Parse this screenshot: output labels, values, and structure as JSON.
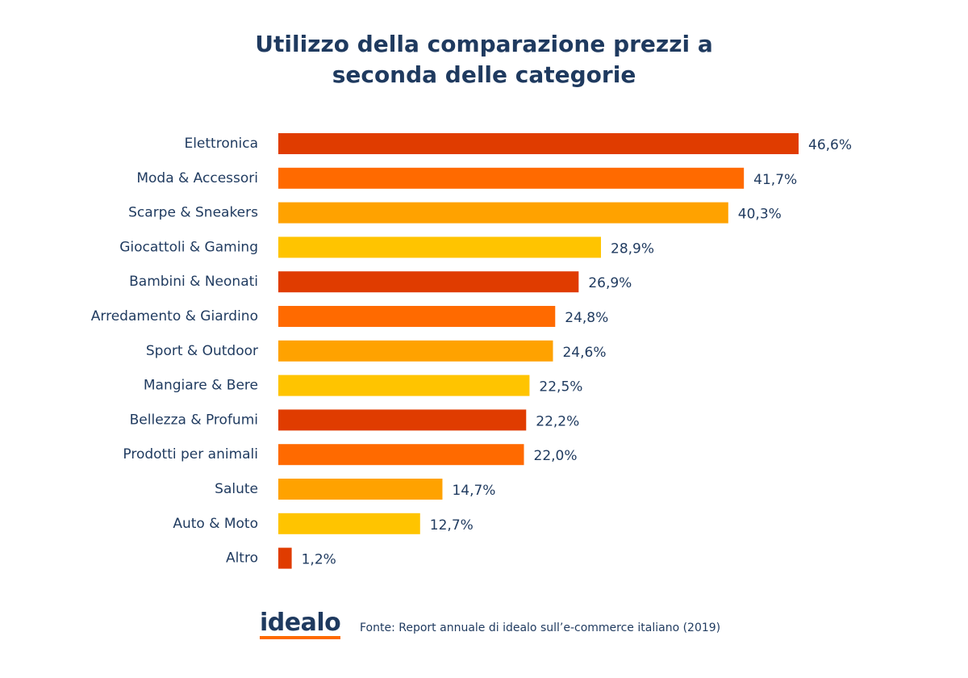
{
  "chart_data": {
    "type": "barh",
    "title": "Utilizzo della comparazione prezzi a seconda delle categorie",
    "categories": [
      "Elettronica",
      "Moda & Accessori",
      "Scarpe & Sneakers",
      "Giocattoli & Gaming",
      "Bambini & Neonati",
      "Arredamento & Giardino",
      "Sport & Outdoor",
      "Mangiare & Bere",
      "Bellezza & Profumi",
      "Prodotti per animali",
      "Salute",
      "Auto & Moto",
      "Altro"
    ],
    "values": [
      46.6,
      41.7,
      40.3,
      28.9,
      26.9,
      24.8,
      24.6,
      22.5,
      22.2,
      22.0,
      14.7,
      12.7,
      1.2
    ],
    "value_labels": [
      "46,6%",
      "41,7%",
      "40,3%",
      "28,9%",
      "26,9%",
      "24,8%",
      "24,6%",
      "22,5%",
      "22,2%",
      "22,0%",
      "14,7%",
      "12,7%",
      "1,2%"
    ],
    "colors": [
      "#e03c00",
      "#ff6a00",
      "#ffa200",
      "#ffc400",
      "#e03c00",
      "#ff6a00",
      "#ffa200",
      "#ffc400",
      "#e03c00",
      "#ff6a00",
      "#ffa200",
      "#ffc400",
      "#e03c00"
    ]
  },
  "footer": {
    "logo": "idealo",
    "source": "Fonte: Report annuale di idealo sull’e-commerce italiano (2019)"
  }
}
